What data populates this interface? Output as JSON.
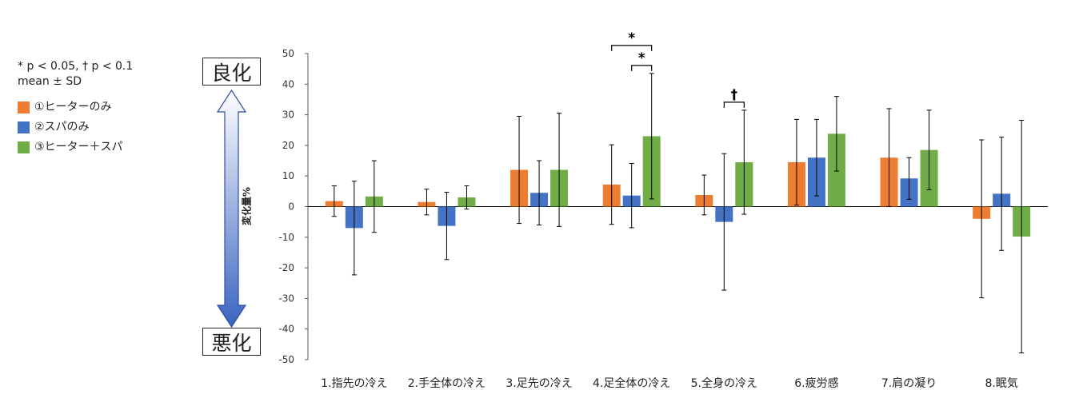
{
  "legend": {
    "note_line1": "* p < 0.05, † p < 0.1",
    "note_line2": "mean ± SD"
  },
  "scale_arrow": {
    "top_label": "良化",
    "bottom_label": "悪化"
  },
  "chart_data": {
    "type": "bar",
    "ylabel": "変化量%",
    "ylim": [
      -50,
      50
    ],
    "yticks": [
      50,
      40,
      30,
      20,
      10,
      0,
      -10,
      -20,
      -30,
      -40,
      -50
    ],
    "grid": false,
    "legend_position": "left",
    "categories": [
      "1.指先の冷え",
      "2.手全体の冷え",
      "3.足先の冷え",
      "4.足全体の冷え",
      "5.全身の冷え",
      "6.疲労感",
      "7.肩の凝り",
      "8.眠気"
    ],
    "series": [
      {
        "name": "①ヒーターのみ",
        "color": "#ED7D31",
        "values": [
          1.8,
          1.5,
          12.0,
          7.2,
          3.8,
          14.5,
          16.0,
          -4.0
        ],
        "error": [
          5.0,
          4.2,
          17.5,
          13.0,
          6.5,
          14.0,
          16.0,
          25.8
        ]
      },
      {
        "name": "②スパのみ",
        "color": "#4472C4",
        "values": [
          -7.0,
          -6.3,
          4.5,
          3.6,
          -5.0,
          16.0,
          9.2,
          4.2
        ],
        "error": [
          15.3,
          11.0,
          10.5,
          10.5,
          22.3,
          12.5,
          6.8,
          18.5
        ]
      },
      {
        "name": "③ヒーター＋スパ",
        "color": "#70AD47",
        "values": [
          3.3,
          3.0,
          12.0,
          23.0,
          14.5,
          23.8,
          18.5,
          -9.8
        ],
        "error": [
          11.7,
          3.8,
          18.5,
          20.5,
          17.0,
          12.2,
          13.0,
          38.0
        ]
      }
    ],
    "annotations": [
      {
        "category": "4.足全体の冷え",
        "between": [
          "①ヒーターのみ",
          "③ヒーター＋スパ"
        ],
        "mark": "*"
      },
      {
        "category": "4.足全体の冷え",
        "between": [
          "②スパのみ",
          "③ヒーター＋スパ"
        ],
        "mark": "*"
      },
      {
        "category": "5.全身の冷え",
        "between": [
          "②スパのみ",
          "③ヒーター＋スパ"
        ],
        "mark": "†"
      }
    ]
  }
}
